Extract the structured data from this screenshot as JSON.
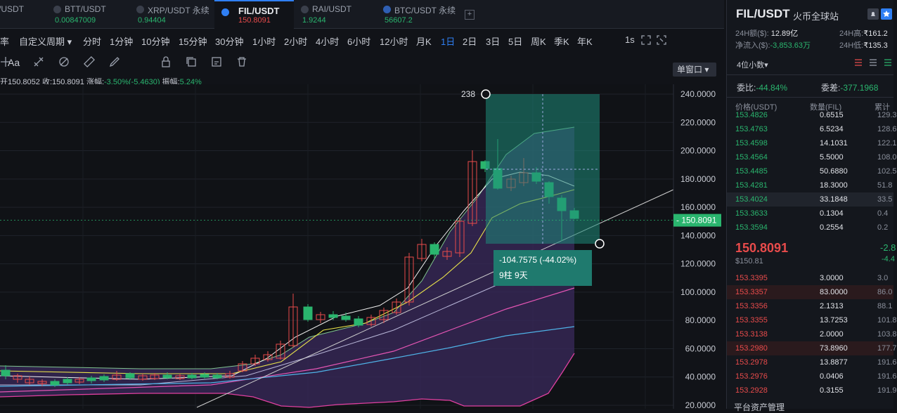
{
  "tabs": [
    {
      "name": "/USDT",
      "price": ""
    },
    {
      "name": "BTT/USDT",
      "price": "0.00847009"
    },
    {
      "name": "XRP/USDT 永续",
      "price": "0.94404"
    },
    {
      "name": "FIL/USDT",
      "price": "150.8091"
    },
    {
      "name": "RAI/USDT",
      "price": "1.9244"
    },
    {
      "name": "BTC/USDT 永续",
      "price": "56607.2"
    }
  ],
  "add_tab": "+",
  "timeframes": [
    "率",
    "自定义周期 ▾",
    "分时",
    "1分钟",
    "10分钟",
    "15分钟",
    "30分钟",
    "1小时",
    "2小时",
    "4小时",
    "6小时",
    "12小时",
    "月K",
    "1日",
    "2日",
    "3日",
    "5日",
    "周K",
    "季K",
    "年K"
  ],
  "selected_timeframe": "1日",
  "interval_1s": "1s",
  "window_mode": "单窗口 ▾",
  "toolbar_icons": [
    "crosshair-icon",
    "text-icon",
    "fibonacci-icon",
    "measure-icon",
    "brush-icon",
    "lock-icon",
    "copy-icon",
    "edit-icon",
    "delete-icon"
  ],
  "text_tool": "Aa",
  "ohlc": {
    "open": "开150.8052",
    "close": "收:150.8091",
    "change_label": "涨幅:",
    "change": "-3.50%(-5.4630)",
    "amp_label": "振幅:",
    "amp": "5.24%"
  },
  "chart": {
    "price_labels": [
      "240.0000",
      "220.0000",
      "200.0000",
      "180.0000",
      "160.0000",
      "140.0000",
      "120.0000",
      "100.0000",
      "80.0000",
      "60.0000",
      "40.0000",
      "20.0000"
    ],
    "current_price": "150.8091",
    "measure_top": "238",
    "measure_info": "-104.7575 (-44.02%)",
    "measure_bars": "9柱 9天"
  },
  "panel": {
    "pair": "FIL/USDT",
    "exchange": "火币全球站",
    "vol_label": "24H额($):",
    "vol": "12.89亿",
    "high_label": "24H高:",
    "high": "₹161.2",
    "inflow_label": "净流入($):",
    "inflow": "-3,853.63万",
    "low_label": "24H低:",
    "low": "₹135.3",
    "decimals": "4位小数▾",
    "ratio_label": "委比:",
    "ratio": "-44.84%",
    "diff_label": "委差:",
    "diff": "-377.1968",
    "col_price": "价格(USDT)",
    "col_qty": "数量(FIL)",
    "col_total": "累计",
    "asks": [
      {
        "p": "153.4826",
        "q": "0.6515",
        "t": "129.3"
      },
      {
        "p": "153.4763",
        "q": "6.5234",
        "t": "128.6"
      },
      {
        "p": "153.4598",
        "q": "14.1031",
        "t": "122.1"
      },
      {
        "p": "153.4564",
        "q": "5.5000",
        "t": "108.0"
      },
      {
        "p": "153.4485",
        "q": "50.6880",
        "t": "102.5"
      },
      {
        "p": "153.4281",
        "q": "18.3000",
        "t": "51.8"
      },
      {
        "p": "153.4024",
        "q": "33.1848",
        "t": "33.5"
      },
      {
        "p": "153.3633",
        "q": "0.1304",
        "t": "0.4"
      },
      {
        "p": "153.3594",
        "q": "0.2554",
        "t": "0.2"
      }
    ],
    "last_price": "150.8091",
    "last_usd": "$150.81",
    "change_pct": "-2.8",
    "change_amt": "-4.4",
    "bids": [
      {
        "p": "153.3395",
        "q": "3.0000",
        "t": "3.0"
      },
      {
        "p": "153.3357",
        "q": "83.0000",
        "t": "86.0"
      },
      {
        "p": "153.3356",
        "q": "2.1313",
        "t": "88.1"
      },
      {
        "p": "153.3355",
        "q": "13.7253",
        "t": "101.8"
      },
      {
        "p": "153.3138",
        "q": "2.0000",
        "t": "103.8"
      },
      {
        "p": "153.2980",
        "q": "73.8960",
        "t": "177.7"
      },
      {
        "p": "153.2978",
        "q": "13.8877",
        "t": "191.6"
      },
      {
        "p": "153.2976",
        "q": "0.0406",
        "t": "191.6"
      },
      {
        "p": "153.2928",
        "q": "0.3155",
        "t": "191.9"
      }
    ],
    "footer": "平台资产管理"
  },
  "colors": {
    "up": "#e84b4b",
    "down": "#2ab56e",
    "accent": "#2f7ff3",
    "measure": "#1e8a7a"
  }
}
